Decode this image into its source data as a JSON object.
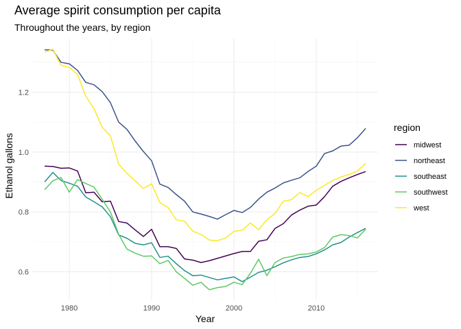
{
  "chart_data": {
    "type": "line",
    "title": "Average spirit consumption per capita",
    "subtitle": "Throughout the years, by region",
    "xlabel": "Year",
    "ylabel": "Ethanol gallons",
    "xlim": [
      1975.5,
      2017.5
    ],
    "ylim": [
      0.505,
      1.38
    ],
    "x_ticks": [
      1980,
      1990,
      2000,
      2010
    ],
    "y_ticks": [
      0.6,
      0.8,
      1.0,
      1.2
    ],
    "x_tick_labels": [
      "1980",
      "1990",
      "2000",
      "2010"
    ],
    "y_tick_labels": [
      "0.6",
      "0.8",
      "1.0",
      "1.2"
    ],
    "grid": true,
    "legend_title": "region",
    "legend_position": "right",
    "x": [
      1977,
      1978,
      1979,
      1980,
      1981,
      1982,
      1983,
      1984,
      1985,
      1986,
      1987,
      1988,
      1989,
      1990,
      1991,
      1992,
      1993,
      1994,
      1995,
      1996,
      1997,
      1998,
      1999,
      2000,
      2001,
      2002,
      2003,
      2004,
      2005,
      2006,
      2007,
      2008,
      2009,
      2010,
      2011,
      2012,
      2013,
      2014,
      2015,
      2016
    ],
    "series": [
      {
        "name": "midwest",
        "color": "#440154",
        "values": [
          0.953,
          0.952,
          0.946,
          0.947,
          0.937,
          0.864,
          0.866,
          0.834,
          0.836,
          0.768,
          0.763,
          0.74,
          0.718,
          0.742,
          0.684,
          0.684,
          0.678,
          0.643,
          0.639,
          0.631,
          0.637,
          0.645,
          0.653,
          0.661,
          0.668,
          0.668,
          0.702,
          0.707,
          0.745,
          0.761,
          0.79,
          0.806,
          0.819,
          0.823,
          0.851,
          0.886,
          0.902,
          0.914,
          0.925,
          0.935
        ]
      },
      {
        "name": "northeast",
        "color": "#3b528b",
        "values": [
          1.342,
          1.341,
          1.3,
          1.295,
          1.273,
          1.233,
          1.225,
          1.202,
          1.165,
          1.1,
          1.076,
          1.037,
          1.002,
          0.971,
          0.893,
          0.882,
          0.858,
          0.836,
          0.8,
          0.793,
          0.785,
          0.776,
          0.791,
          0.805,
          0.798,
          0.815,
          0.843,
          0.866,
          0.88,
          0.897,
          0.906,
          0.914,
          0.935,
          0.953,
          0.995,
          1.004,
          1.02,
          1.023,
          1.048,
          1.079
        ]
      },
      {
        "name": "southeast",
        "color": "#21908c",
        "values": [
          0.9,
          0.932,
          0.905,
          0.896,
          0.886,
          0.85,
          0.834,
          0.817,
          0.784,
          0.723,
          0.712,
          0.695,
          0.69,
          0.697,
          0.648,
          0.652,
          0.627,
          0.604,
          0.587,
          0.589,
          0.581,
          0.573,
          0.578,
          0.583,
          0.567,
          0.582,
          0.598,
          0.605,
          0.617,
          0.63,
          0.64,
          0.648,
          0.651,
          0.66,
          0.673,
          0.69,
          0.698,
          0.716,
          0.731,
          0.745
        ]
      },
      {
        "name": "southwest",
        "color": "#5dc863",
        "values": [
          0.874,
          0.904,
          0.915,
          0.866,
          0.908,
          0.895,
          0.883,
          0.842,
          0.8,
          0.725,
          0.676,
          0.662,
          0.652,
          0.653,
          0.627,
          0.638,
          0.6,
          0.578,
          0.555,
          0.565,
          0.54,
          0.547,
          0.551,
          0.565,
          0.557,
          0.595,
          0.642,
          0.587,
          0.631,
          0.646,
          0.651,
          0.658,
          0.66,
          0.666,
          0.681,
          0.716,
          0.724,
          0.721,
          0.713,
          0.742
        ]
      },
      {
        "name": "west",
        "color": "#fde725",
        "values": [
          1.334,
          1.344,
          1.29,
          1.283,
          1.26,
          1.187,
          1.145,
          1.083,
          1.054,
          0.96,
          0.929,
          0.904,
          0.878,
          0.894,
          0.831,
          0.815,
          0.774,
          0.769,
          0.736,
          0.725,
          0.706,
          0.704,
          0.713,
          0.735,
          0.739,
          0.763,
          0.741,
          0.774,
          0.795,
          0.836,
          0.841,
          0.865,
          0.851,
          0.872,
          0.889,
          0.905,
          0.917,
          0.925,
          0.937,
          0.962
        ]
      }
    ]
  }
}
